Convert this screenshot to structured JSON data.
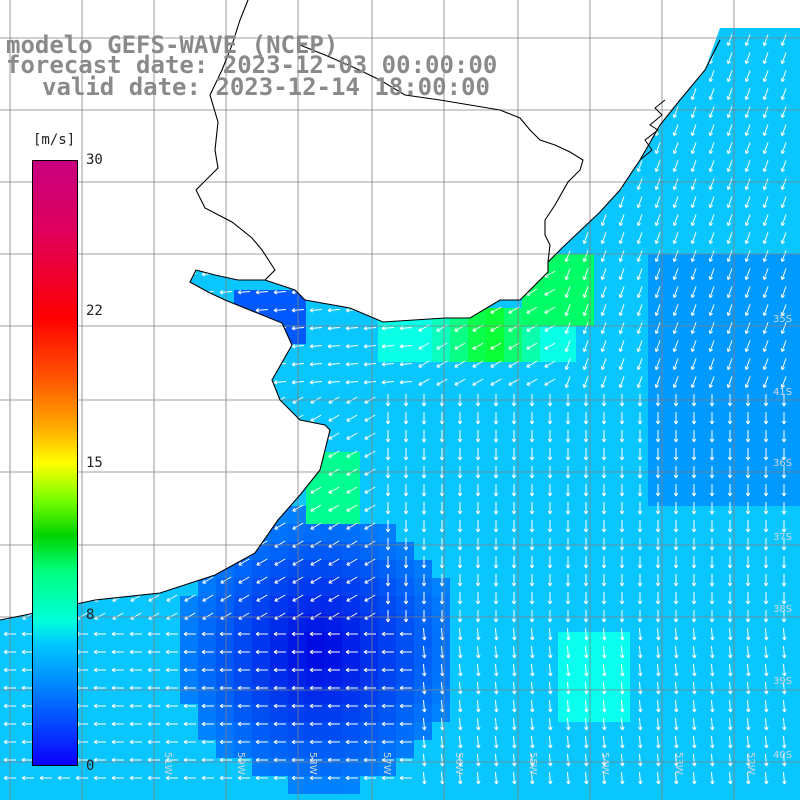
{
  "header": {
    "model": "modelo GEFS-WAVE (NCEP)",
    "forecast": "forecast date: 2023-12-03 00:00:00",
    "valid": "valid date: 2023-12-14 18:00:00"
  },
  "colorbar": {
    "unit": "[m/s]",
    "ticks": [
      "30",
      "22",
      "15",
      "8",
      "0"
    ],
    "range": [
      0,
      30
    ]
  },
  "axes": {
    "lon_labels": [
      "59W",
      "58W",
      "57W",
      "56W",
      "55W",
      "54W",
      "53W",
      "52W",
      "51W"
    ],
    "lat_labels": [
      "35S",
      "36S",
      "37S",
      "38S",
      "39S",
      "40S",
      "41S"
    ]
  },
  "colors": {
    "land": "#ffffff",
    "coast": "#000000",
    "grid": "#808080",
    "arrow": "#ffffff",
    "title": "#8a8a8a"
  }
}
